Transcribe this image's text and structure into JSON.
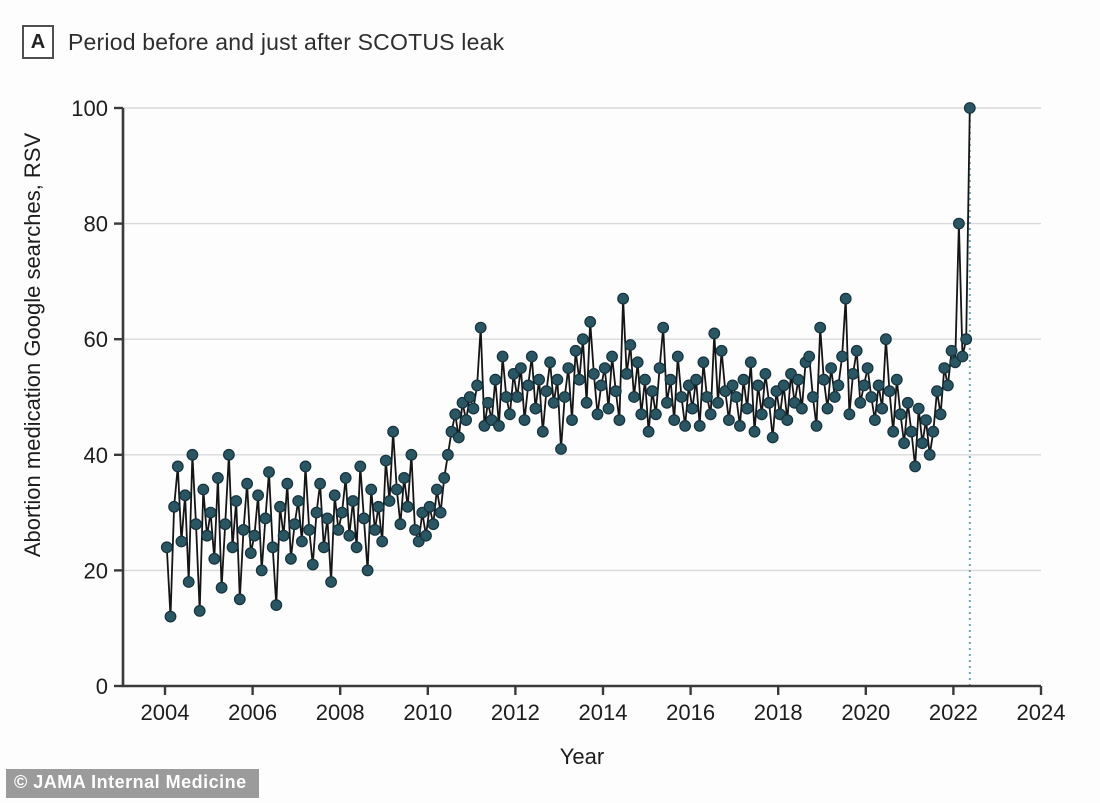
{
  "panel": {
    "label": "A",
    "title": "Period before and just after SCOTUS leak"
  },
  "watermark": {
    "text": "© JAMA Internal Medicine"
  },
  "chart_data": {
    "type": "line",
    "title": "Period before and just after SCOTUS leak",
    "xlabel": "Year",
    "ylabel": "Abortion medication Google searches, RSV",
    "xlim": [
      2003.25,
      2024.75
    ],
    "ylim": [
      0,
      100
    ],
    "xticks": [
      2004,
      2006,
      2008,
      2010,
      2012,
      2014,
      2016,
      2018,
      2020,
      2022,
      2024
    ],
    "yticks": [
      0,
      20,
      40,
      60,
      80,
      100
    ],
    "grid": "horizontal",
    "legend": "none",
    "marker": "circle",
    "colors": {
      "marker_fill": "#2a5562",
      "marker_stroke": "#16333d",
      "line": "#151515",
      "grid": "#d9d9d9",
      "axis": "#3a3a3a",
      "event_line": "#6fa2b4",
      "text": "#1d1d1d"
    },
    "event_line": {
      "x": 2022.375,
      "style": "dotted",
      "y_top": 100
    },
    "series": [
      {
        "start_year": 2004,
        "start_month": 1,
        "cadence": "monthly",
        "end": "2022-05",
        "values": [
          24,
          12,
          31,
          38,
          25,
          33,
          18,
          40,
          28,
          13,
          34,
          26,
          30,
          22,
          36,
          17,
          28,
          40,
          24,
          32,
          15,
          27,
          35,
          23,
          26,
          33,
          20,
          29,
          37,
          24,
          14,
          31,
          26,
          35,
          22,
          28,
          32,
          25,
          38,
          27,
          21,
          30,
          35,
          24,
          29,
          18,
          33,
          27,
          30,
          36,
          26,
          32,
          24,
          38,
          29,
          20,
          34,
          27,
          31,
          25,
          39,
          32,
          44,
          34,
          28,
          36,
          31,
          40,
          27,
          25,
          30,
          26,
          31,
          28,
          34,
          30,
          36,
          40,
          44,
          47,
          43,
          49,
          46,
          50,
          48,
          52,
          62,
          45,
          49,
          46,
          53,
          45,
          57,
          50,
          47,
          54,
          50,
          55,
          46,
          52,
          57,
          48,
          53,
          44,
          51,
          56,
          49,
          53,
          41,
          50,
          55,
          46,
          58,
          53,
          60,
          49,
          63,
          54,
          47,
          52,
          55,
          48,
          57,
          51,
          46,
          67,
          54,
          59,
          50,
          56,
          47,
          53,
          44,
          51,
          47,
          55,
          62,
          49,
          53,
          46,
          57,
          50,
          45,
          52,
          48,
          53,
          45,
          56,
          50,
          47,
          61,
          49,
          58,
          51,
          46,
          52,
          50,
          45,
          53,
          48,
          56,
          44,
          52,
          47,
          54,
          49,
          43,
          51,
          47,
          52,
          46,
          54,
          49,
          53,
          48,
          56,
          57,
          50,
          45,
          62,
          53,
          48,
          55,
          50,
          52,
          57,
          67,
          47,
          54,
          58,
          49,
          52,
          55,
          50,
          46,
          52,
          48,
          60,
          51,
          44,
          53,
          47,
          42,
          49,
          44,
          38,
          48,
          42,
          46,
          40,
          44,
          51,
          47,
          55,
          52,
          58,
          56,
          80,
          57,
          60,
          100
        ]
      }
    ]
  }
}
